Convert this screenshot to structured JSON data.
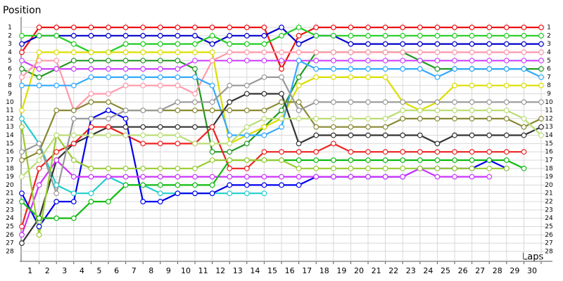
{
  "chart_data": {
    "type": "line",
    "title": "Position",
    "x_label": "Laps",
    "x": [
      0,
      1,
      2,
      3,
      4,
      5,
      6,
      7,
      8,
      9,
      10,
      11,
      12,
      13,
      14,
      15,
      16,
      17,
      18,
      19,
      20,
      21,
      22,
      23,
      24,
      25,
      26,
      27,
      28,
      29,
      30
    ],
    "xlim": [
      0,
      30
    ],
    "xticks": [
      1,
      2,
      3,
      4,
      5,
      6,
      7,
      8,
      9,
      10,
      11,
      12,
      13,
      14,
      15,
      16,
      17,
      18,
      19,
      20,
      21,
      22,
      23,
      24,
      25,
      26,
      27,
      28,
      29,
      30
    ],
    "ylim": [
      0,
      29
    ],
    "yticks": [
      1,
      2,
      3,
      4,
      5,
      6,
      7,
      8,
      9,
      10,
      11,
      12,
      13,
      14,
      15,
      16,
      17,
      18,
      19,
      20,
      21,
      22,
      23,
      24,
      25,
      26,
      27,
      28
    ],
    "y_inverted": true,
    "grid": true,
    "series": [
      {
        "color": "#ee1111",
        "values": [
          4,
          1,
          1,
          1,
          1,
          1,
          1,
          1,
          1,
          1,
          1,
          1,
          1,
          1,
          1,
          6,
          2,
          1,
          1,
          1,
          1,
          1,
          1,
          1,
          1,
          1,
          1,
          1,
          1,
          1,
          1
        ]
      },
      {
        "color": "#0000cc",
        "values": [
          3,
          2,
          2,
          2,
          2,
          2,
          2,
          2,
          2,
          2,
          2,
          3,
          2,
          2,
          2,
          1,
          3,
          2,
          2,
          3,
          3,
          3,
          3,
          3,
          3,
          3,
          3,
          3,
          3,
          3,
          3
        ]
      },
      {
        "color": "#22cc22",
        "values": [
          2,
          2,
          2,
          3,
          4,
          4,
          3,
          3,
          3,
          3,
          3,
          2,
          3,
          3,
          3,
          2,
          1,
          2,
          2,
          2,
          2,
          2,
          2,
          2,
          2,
          2,
          2,
          2,
          2,
          2,
          2
        ]
      },
      {
        "color": "#229922",
        "values": [
          6,
          7,
          6,
          5,
          5,
          5,
          5,
          5,
          5,
          5,
          6,
          16,
          16,
          15,
          13,
          11,
          7,
          4,
          4,
          4,
          4,
          4,
          4,
          5,
          6,
          6,
          6,
          6,
          6,
          6,
          6
        ]
      },
      {
        "color": "#dddd00",
        "values": [
          11,
          4,
          4,
          4,
          4,
          4,
          4,
          4,
          4,
          4,
          4,
          4,
          15,
          14,
          13,
          12,
          8,
          7,
          7,
          7,
          7,
          7,
          10,
          11,
          10,
          8,
          8,
          8,
          8,
          8,
          8
        ]
      },
      {
        "color": "#cc44ff",
        "values": [
          5,
          6,
          6,
          6,
          6,
          6,
          6,
          6,
          6,
          6,
          5,
          5,
          5,
          5,
          5,
          5,
          5,
          5,
          5,
          5,
          5,
          5,
          5,
          5,
          5,
          5,
          5,
          5,
          5,
          5,
          5
        ]
      },
      {
        "color": "#ff99aa",
        "values": [
          7,
          5,
          5,
          11,
          9,
          9,
          8,
          8,
          8,
          8,
          9,
          5,
          4,
          4,
          4,
          4,
          4,
          4,
          4,
          4,
          4,
          4,
          4,
          4,
          4,
          4,
          4,
          4,
          4,
          4,
          4
        ]
      },
      {
        "color": "#33aaff",
        "values": [
          8,
          8,
          8,
          8,
          7,
          7,
          7,
          7,
          7,
          7,
          7,
          8,
          14,
          14,
          14,
          13,
          5,
          6,
          6,
          6,
          6,
          6,
          6,
          6,
          7,
          6,
          6,
          6,
          6,
          6,
          7
        ]
      },
      {
        "color": "#22cccc",
        "values": [
          12,
          15,
          20,
          21,
          21,
          19,
          20,
          20,
          21,
          21,
          21,
          21,
          21,
          21,
          21,
          null,
          null,
          null,
          null,
          null,
          null,
          null,
          null,
          null,
          null,
          null,
          null,
          null,
          null,
          null,
          null
        ]
      },
      {
        "color": "#333333",
        "values": [
          27,
          24,
          17,
          15,
          14,
          13,
          13,
          13,
          13,
          13,
          13,
          13,
          10,
          9,
          9,
          9,
          15,
          14,
          14,
          14,
          14,
          14,
          14,
          14,
          15,
          14,
          14,
          14,
          14,
          14,
          13
        ]
      },
      {
        "color": "#ee2222",
        "values": [
          25,
          18,
          16,
          15,
          13,
          13,
          14,
          15,
          15,
          15,
          15,
          13,
          18,
          18,
          16,
          16,
          16,
          16,
          15,
          16,
          16,
          16,
          16,
          16,
          16,
          16,
          16,
          16,
          16,
          16,
          null
        ]
      },
      {
        "color": "#0000ee",
        "values": [
          21,
          25,
          22,
          22,
          12,
          11,
          12,
          22,
          22,
          21,
          21,
          21,
          20,
          20,
          20,
          20,
          20,
          19,
          19,
          19,
          19,
          19,
          19,
          18,
          18,
          18,
          18,
          17,
          18,
          null,
          null
        ]
      },
      {
        "color": "#cc33ff",
        "values": [
          26,
          20,
          17,
          19,
          19,
          19,
          19,
          19,
          19,
          19,
          19,
          19,
          19,
          19,
          19,
          19,
          19,
          19,
          19,
          19,
          19,
          19,
          19,
          18,
          19,
          19,
          19,
          19,
          null,
          null,
          null
        ]
      },
      {
        "color": "#11bb11",
        "values": [
          22,
          24,
          24,
          24,
          22,
          22,
          20,
          20,
          20,
          20,
          20,
          20,
          17,
          17,
          17,
          17,
          17,
          17,
          17,
          17,
          17,
          17,
          17,
          17,
          17,
          17,
          17,
          17,
          17,
          18,
          null
        ]
      },
      {
        "color": "#99cc33",
        "values": [
          13,
          26,
          14,
          17,
          18,
          18,
          18,
          18,
          18,
          18,
          18,
          17,
          17,
          17,
          17,
          17,
          18,
          18,
          18,
          18,
          18,
          18,
          18,
          18,
          18,
          18,
          18,
          18,
          18,
          null,
          null
        ]
      },
      {
        "color": "#888833",
        "values": [
          17,
          16,
          11,
          11,
          10,
          10,
          11,
          11,
          11,
          11,
          11,
          11,
          11,
          11,
          11,
          10,
          10,
          13,
          13,
          13,
          13,
          13,
          12,
          12,
          12,
          12,
          12,
          12,
          12,
          13,
          12
        ]
      },
      {
        "color": "#999999",
        "values": [
          16,
          15,
          21,
          12,
          12,
          12,
          11,
          11,
          11,
          10,
          10,
          10,
          8,
          8,
          7,
          7,
          11,
          10,
          10,
          10,
          10,
          10,
          10,
          10,
          10,
          10,
          10,
          10,
          10,
          10,
          10
        ]
      },
      {
        "color": "#bbdd77",
        "values": [
          19,
          17,
          14,
          14,
          14,
          14,
          14,
          14,
          14,
          14,
          15,
          15,
          15,
          13,
          12,
          12,
          12,
          12,
          12,
          12,
          12,
          12,
          11,
          11,
          11,
          11,
          11,
          11,
          11,
          12,
          14
        ]
      }
    ]
  }
}
